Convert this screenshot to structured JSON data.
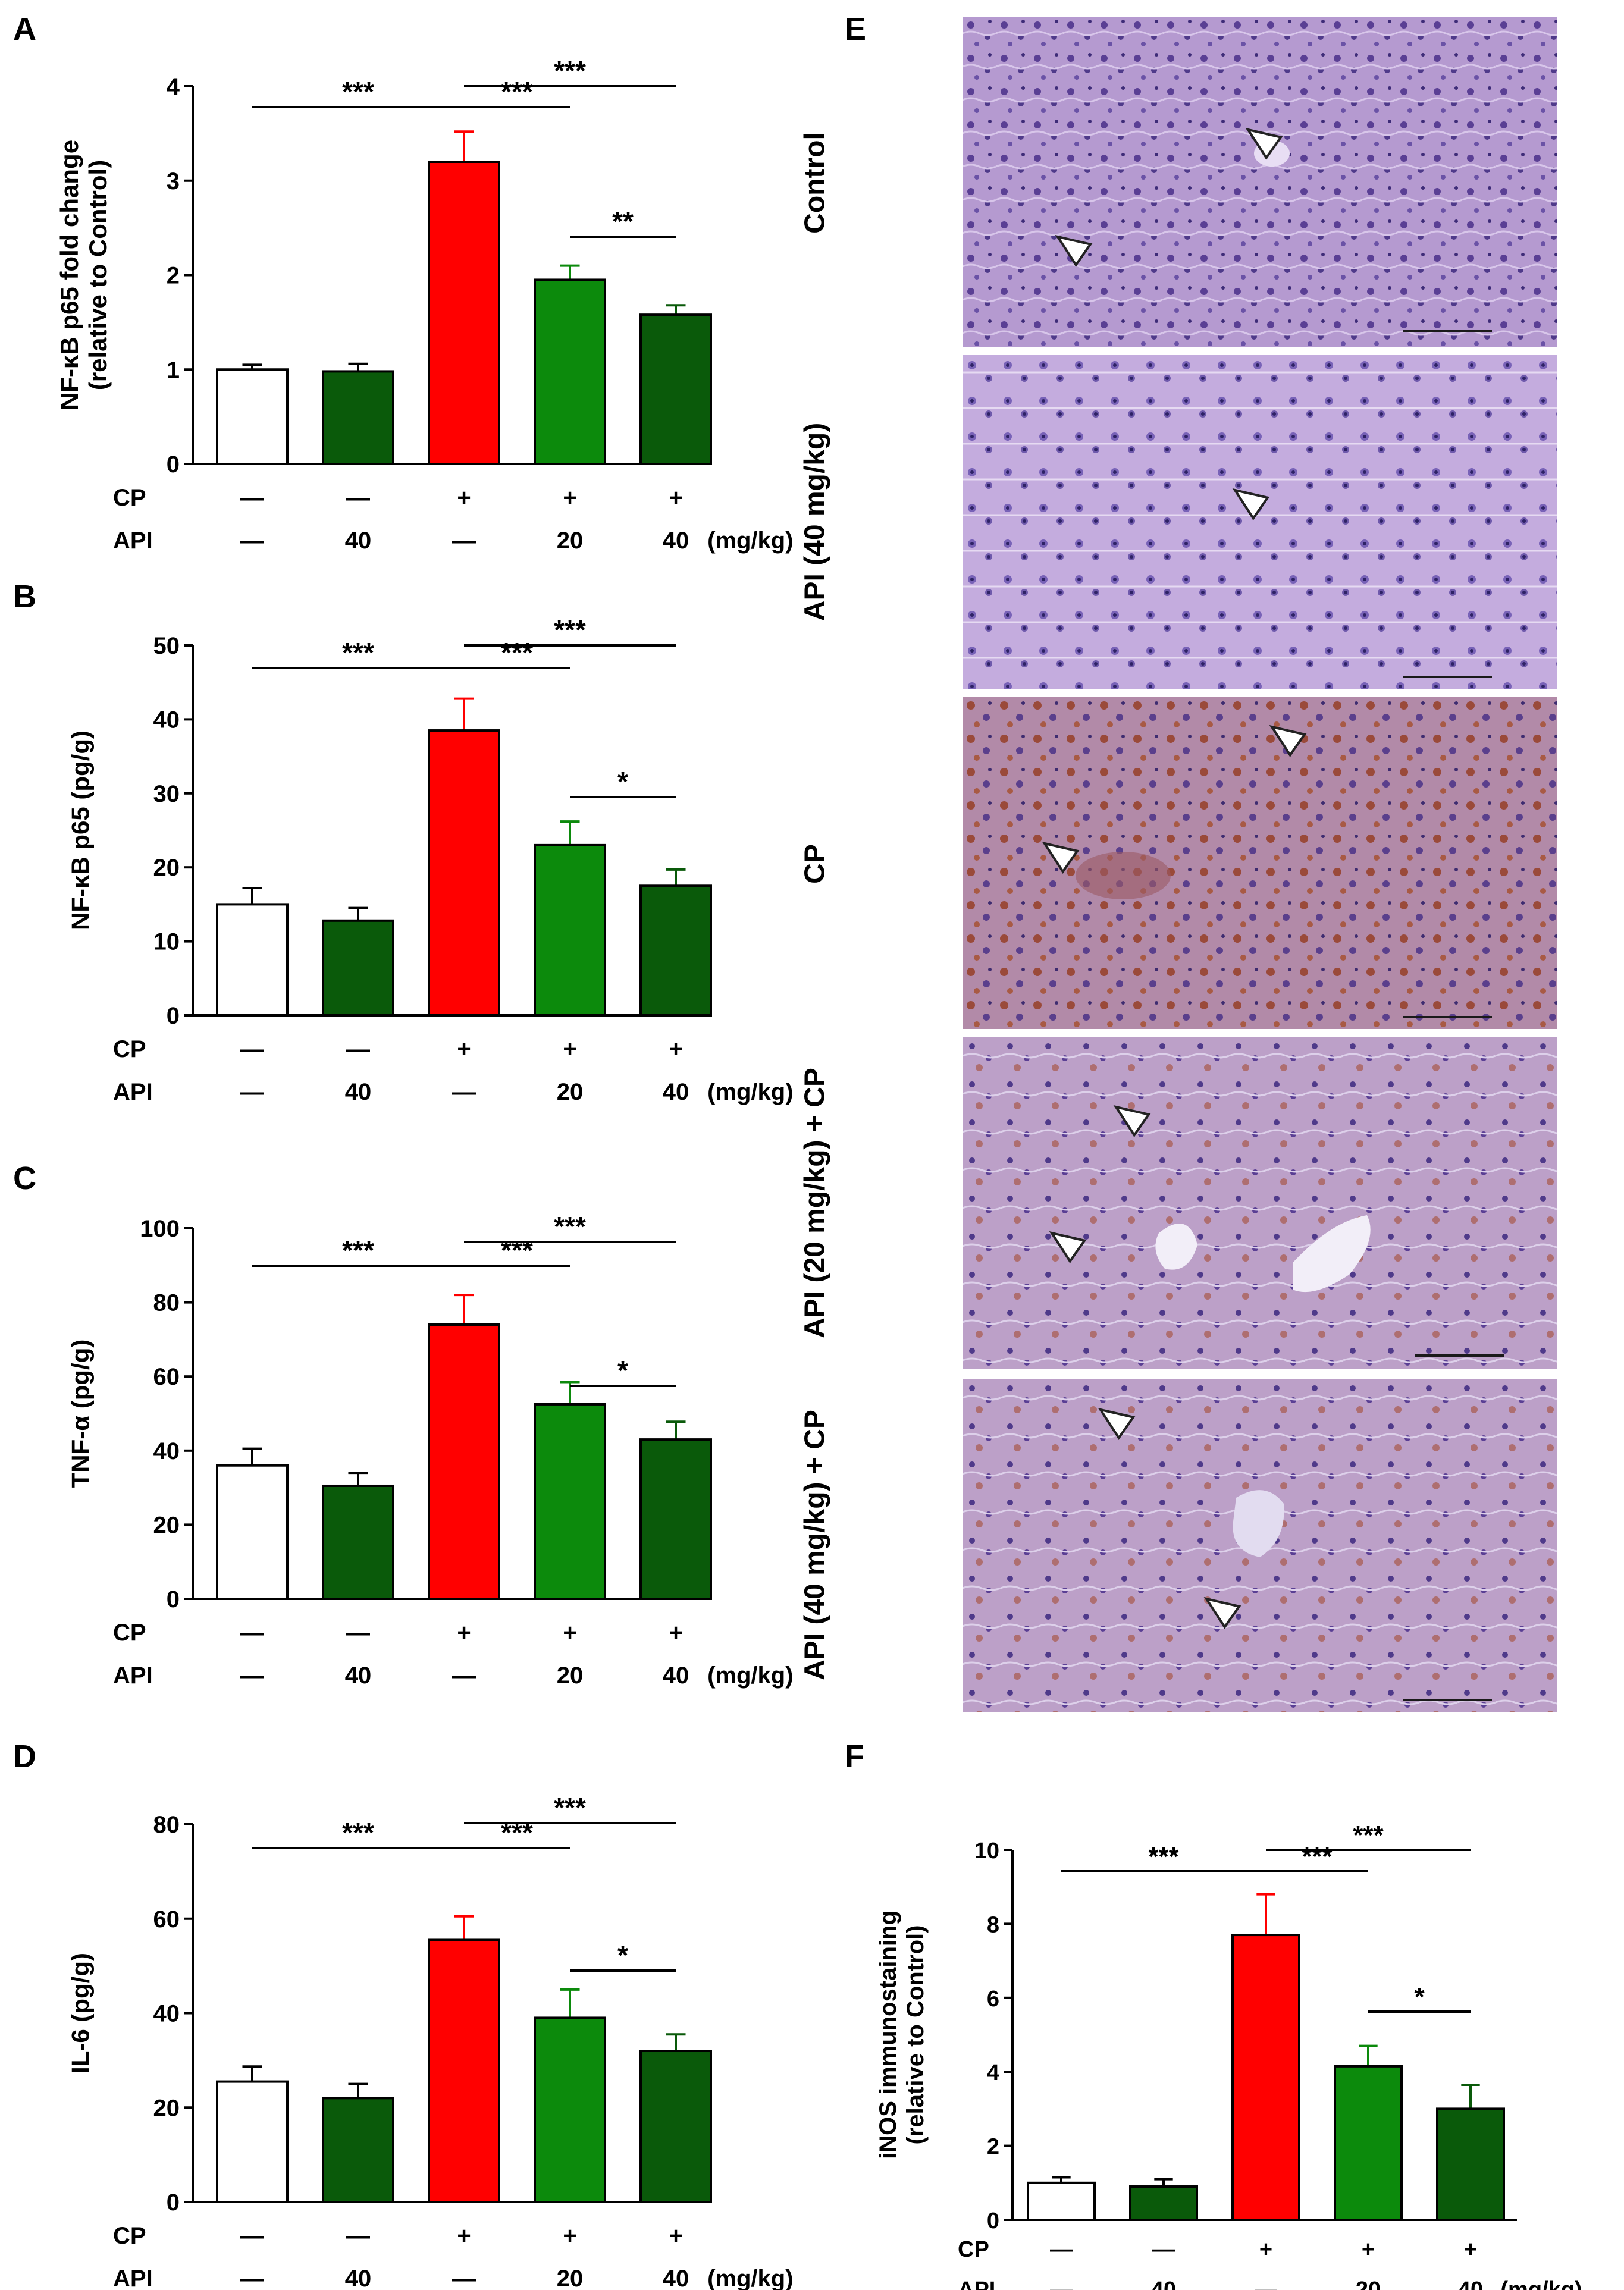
{
  "panel_labels": {
    "A": "A",
    "B": "B",
    "C": "C",
    "D": "D",
    "E": "E",
    "F": "F"
  },
  "row_labels": {
    "cp": "CP",
    "api": "API",
    "unit": "(mg/kg)"
  },
  "cp_row": [
    "—",
    "—",
    "+",
    "+",
    "+"
  ],
  "api_row": [
    "—",
    "40",
    "—",
    "20",
    "40"
  ],
  "colors": {
    "control": "#ffffff",
    "api": "#0a5a0a",
    "cp": "#ff0000",
    "api20": "#0c8a0c",
    "api40": "#0a5a0a"
  },
  "micrographs": [
    {
      "label": "Control"
    },
    {
      "label": "API (40 mg/kg)"
    },
    {
      "label": "CP"
    },
    {
      "label": "API (20 mg/kg) + CP"
    },
    {
      "label": "API (40 mg/kg) + CP"
    }
  ],
  "chart_data": [
    {
      "panel": "A",
      "type": "bar",
      "ylabel": "NF-κB p65 fold change\n(relative to Control)",
      "ylim": [
        0,
        4
      ],
      "yticks": [
        0,
        1,
        2,
        3,
        4
      ],
      "values": [
        1.0,
        0.98,
        3.2,
        1.95,
        1.58
      ],
      "errors": [
        0.05,
        0.08,
        0.32,
        0.15,
        0.1
      ],
      "significance": [
        {
          "from": 0,
          "to": 2,
          "label": "***"
        },
        {
          "from": 2,
          "to": 3,
          "label": "***"
        },
        {
          "from": 2,
          "to": 4,
          "label": "***"
        },
        {
          "from": 3,
          "to": 4,
          "label": "**"
        }
      ]
    },
    {
      "panel": "B",
      "type": "bar",
      "ylabel": "NF-κB p65 (pg/g)",
      "ylim": [
        0,
        50
      ],
      "yticks": [
        0,
        10,
        20,
        30,
        40,
        50
      ],
      "values": [
        15,
        12.8,
        38.5,
        23,
        17.5
      ],
      "errors": [
        2.2,
        1.7,
        4.3,
        3.2,
        2.2
      ],
      "significance": [
        {
          "from": 0,
          "to": 2,
          "label": "***"
        },
        {
          "from": 2,
          "to": 3,
          "label": "***"
        },
        {
          "from": 2,
          "to": 4,
          "label": "***"
        },
        {
          "from": 3,
          "to": 4,
          "label": "*"
        }
      ]
    },
    {
      "panel": "C",
      "type": "bar",
      "ylabel": "TNF-α (pg/g)",
      "ylim": [
        0,
        100
      ],
      "yticks": [
        0,
        20,
        40,
        60,
        80,
        100
      ],
      "values": [
        36,
        30.5,
        74,
        52.5,
        43
      ],
      "errors": [
        4.5,
        3.5,
        8,
        6,
        4.8
      ],
      "significance": [
        {
          "from": 0,
          "to": 2,
          "label": "***"
        },
        {
          "from": 2,
          "to": 3,
          "label": "***"
        },
        {
          "from": 2,
          "to": 4,
          "label": "***"
        },
        {
          "from": 3,
          "to": 4,
          "label": "*"
        }
      ]
    },
    {
      "panel": "D",
      "type": "bar",
      "ylabel": "IL-6 (pg/g)",
      "ylim": [
        0,
        80
      ],
      "yticks": [
        0,
        20,
        40,
        60,
        80
      ],
      "values": [
        25.5,
        22,
        55.5,
        39,
        32
      ],
      "errors": [
        3.2,
        3,
        5,
        6,
        3.5
      ],
      "significance": [
        {
          "from": 0,
          "to": 2,
          "label": "***"
        },
        {
          "from": 2,
          "to": 3,
          "label": "***"
        },
        {
          "from": 2,
          "to": 4,
          "label": "***"
        },
        {
          "from": 3,
          "to": 4,
          "label": "*"
        }
      ]
    },
    {
      "panel": "F",
      "type": "bar",
      "ylabel": "iNOS immunostaining\n(relative to Control)",
      "ylim": [
        0,
        10
      ],
      "yticks": [
        0,
        2,
        4,
        6,
        8,
        10
      ],
      "values": [
        1.0,
        0.9,
        7.7,
        4.15,
        3.0
      ],
      "errors": [
        0.15,
        0.2,
        1.1,
        0.55,
        0.65
      ],
      "significance": [
        {
          "from": 0,
          "to": 2,
          "label": "***"
        },
        {
          "from": 2,
          "to": 3,
          "label": "***"
        },
        {
          "from": 2,
          "to": 4,
          "label": "***"
        },
        {
          "from": 3,
          "to": 4,
          "label": "*"
        }
      ]
    }
  ]
}
